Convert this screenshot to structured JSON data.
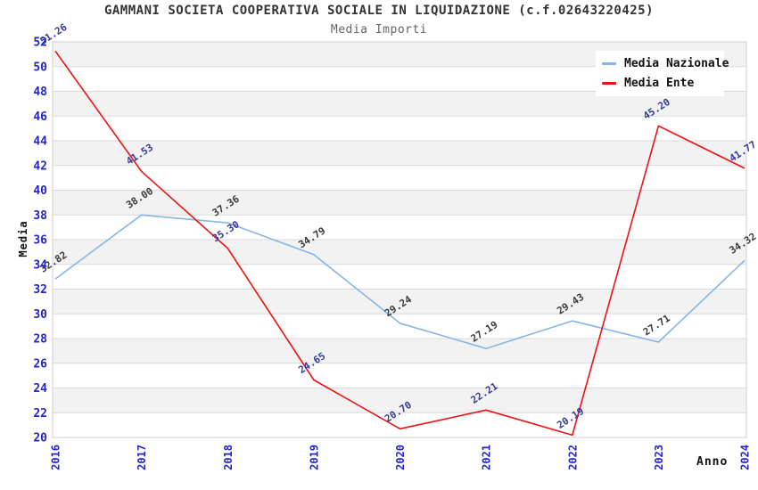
{
  "chart_data": {
    "type": "line",
    "title": "GAMMANI SOCIETA COOPERATIVA SOCIALE IN LIQUIDAZIONE (c.f.02643220425)",
    "subtitle": "Media Importi",
    "xlabel": "Anno",
    "ylabel": "Media",
    "categories": [
      "2016",
      "2017",
      "2018",
      "2019",
      "2020",
      "2021",
      "2022",
      "2023",
      "2024"
    ],
    "series": [
      {
        "name": "Media Nazionale",
        "color": "#84b6e9",
        "label_color": "#3a3a3a",
        "values": [
          32.82,
          38.0,
          37.36,
          34.79,
          29.24,
          27.19,
          29.43,
          27.71,
          34.32
        ]
      },
      {
        "name": "Media Ente",
        "color": "#ee1111",
        "label_color": "#333a9e",
        "values": [
          51.26,
          41.53,
          35.3,
          24.65,
          20.7,
          22.21,
          20.19,
          45.2,
          41.77
        ]
      }
    ],
    "ylim": [
      20,
      52
    ],
    "ytick_step": 2,
    "grid": true,
    "band_fill": "#f2f2f2",
    "gridline_color": "#dadada",
    "plot_border_color": "#cfcfcf",
    "tick_label_color": "#2424cc",
    "legend_position": "top-right"
  }
}
